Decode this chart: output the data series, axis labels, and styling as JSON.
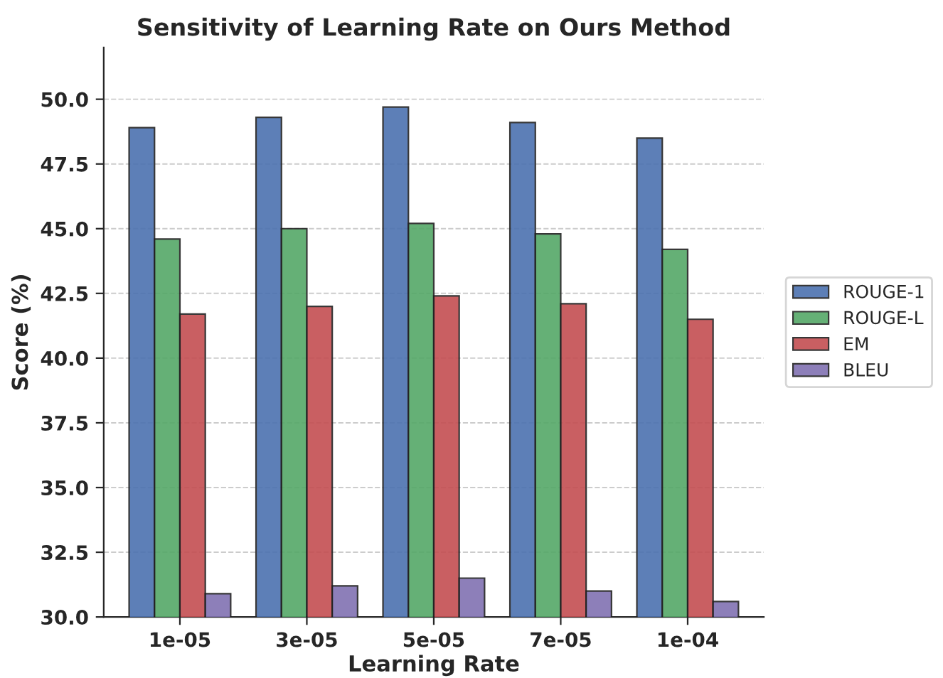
{
  "chart_data": {
    "type": "bar",
    "title": "Sensitivity of Learning Rate on Ours Method",
    "xlabel": "Learning Rate",
    "ylabel": "Score (%)",
    "categories": [
      "1e-05",
      "3e-05",
      "5e-05",
      "7e-05",
      "1e-04"
    ],
    "series": [
      {
        "name": "ROUGE-1",
        "color": "#4c72b0",
        "values": [
          48.9,
          49.3,
          49.7,
          49.1,
          48.5
        ]
      },
      {
        "name": "ROUGE-L",
        "color": "#55a868",
        "values": [
          44.6,
          45.0,
          45.2,
          44.8,
          44.2
        ]
      },
      {
        "name": "EM",
        "color": "#c44e52",
        "values": [
          41.7,
          42.0,
          42.4,
          42.1,
          41.5
        ]
      },
      {
        "name": "BLEU",
        "color": "#8172b2",
        "values": [
          30.9,
          31.2,
          31.5,
          31.0,
          30.6
        ]
      }
    ],
    "ylim": [
      30,
      52
    ],
    "yticks": [
      {
        "value": 30,
        "label": "30.0"
      },
      32.5,
      {
        "value": 35,
        "label": "35.0"
      },
      37.5,
      {
        "value": 40,
        "label": "40.0"
      },
      42.5,
      {
        "value": 45,
        "label": "45.0"
      },
      47.5,
      {
        "value": 50,
        "label": "50.0"
      }
    ],
    "grid": "y",
    "legend": "right"
  }
}
